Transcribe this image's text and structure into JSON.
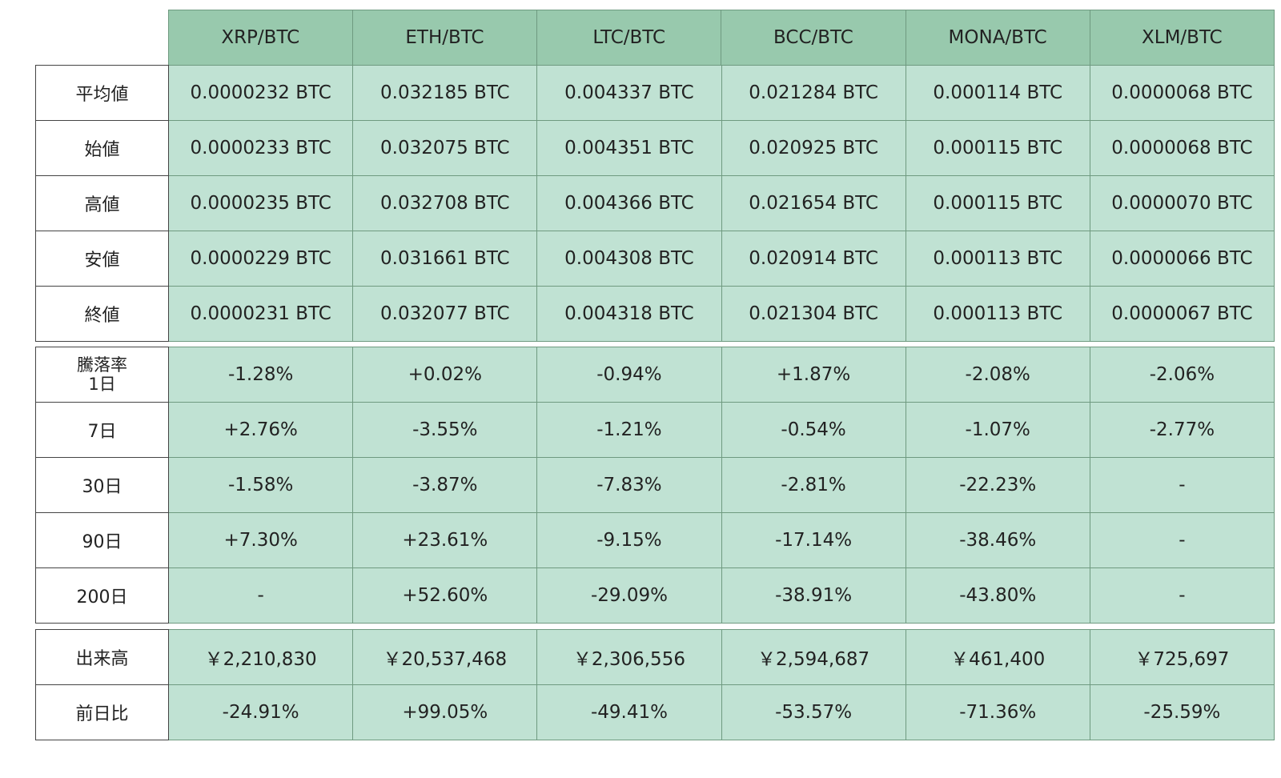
{
  "header": {
    "pairs": [
      "XRP/BTC",
      "ETH/BTC",
      "LTC/BTC",
      "BCC/BTC",
      "MONA/BTC",
      "XLM/BTC"
    ]
  },
  "prices": [
    {
      "label": "平均値",
      "values": [
        "0.0000232 BTC",
        "0.032185 BTC",
        "0.004337 BTC",
        "0.021284 BTC",
        "0.000114 BTC",
        "0.0000068 BTC"
      ]
    },
    {
      "label": "始値",
      "values": [
        "0.0000233 BTC",
        "0.032075 BTC",
        "0.004351 BTC",
        "0.020925 BTC",
        "0.000115 BTC",
        "0.0000068 BTC"
      ]
    },
    {
      "label": "高値",
      "values": [
        "0.0000235 BTC",
        "0.032708 BTC",
        "0.004366 BTC",
        "0.021654 BTC",
        "0.000115 BTC",
        "0.0000070 BTC"
      ]
    },
    {
      "label": "安値",
      "values": [
        "0.0000229 BTC",
        "0.031661 BTC",
        "0.004308 BTC",
        "0.020914 BTC",
        "0.000113 BTC",
        "0.0000066 BTC"
      ]
    },
    {
      "label": "終値",
      "values": [
        "0.0000231 BTC",
        "0.032077 BTC",
        "0.004318 BTC",
        "0.021304 BTC",
        "0.000113 BTC",
        "0.0000067 BTC"
      ]
    }
  ],
  "change": {
    "title": "騰落率",
    "rows": [
      {
        "label": "1日",
        "values": [
          "-1.28%",
          "+0.02%",
          "-0.94%",
          "+1.87%",
          "-2.08%",
          "-2.06%"
        ]
      },
      {
        "label": "7日",
        "values": [
          "+2.76%",
          "-3.55%",
          "-1.21%",
          "-0.54%",
          "-1.07%",
          "-2.77%"
        ]
      },
      {
        "label": "30日",
        "values": [
          "-1.58%",
          "-3.87%",
          "-7.83%",
          "-2.81%",
          "-22.23%",
          "-"
        ]
      },
      {
        "label": "90日",
        "values": [
          "+7.30%",
          "+23.61%",
          "-9.15%",
          "-17.14%",
          "-38.46%",
          "-"
        ]
      },
      {
        "label": "200日",
        "values": [
          "-",
          "+52.60%",
          "-29.09%",
          "-38.91%",
          "-43.80%",
          "-"
        ]
      }
    ]
  },
  "volume": [
    {
      "label": "出来高",
      "values": [
        "￥2,210,830",
        "￥20,537,468",
        "￥2,306,556",
        "￥2,594,687",
        "￥461,400",
        "￥725,697"
      ]
    },
    {
      "label": "前日比",
      "values": [
        "-24.91%",
        "+99.05%",
        "-49.41%",
        "-53.57%",
        "-71.36%",
        "-25.59%"
      ]
    }
  ]
}
